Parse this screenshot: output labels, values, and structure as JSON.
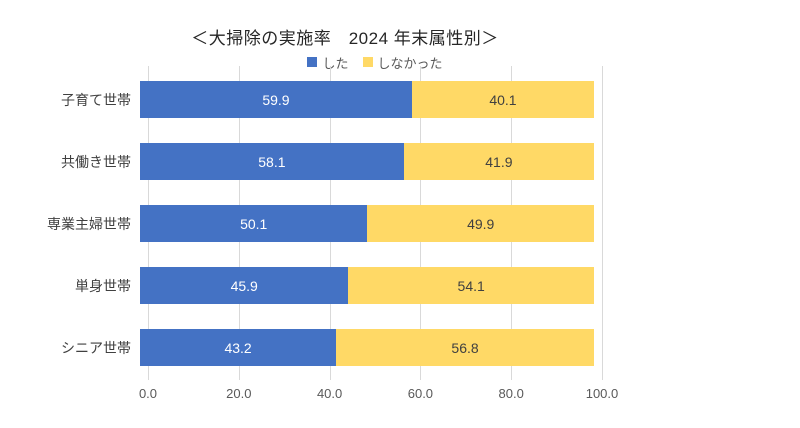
{
  "title": "＜大掃除の実施率　2024 年末属性別＞",
  "legend": [
    {
      "label": "した",
      "color": "#4472C4"
    },
    {
      "label": "しなかった",
      "color": "#FFD966"
    }
  ],
  "chart_data": {
    "type": "bar",
    "stacked": true,
    "orientation": "horizontal",
    "title": "＜大掃除の実施率　2024 年末属性別＞",
    "categories": [
      "子育て世帯",
      "共働き世帯",
      "専業主婦世帯",
      "単身世帯",
      "シニア世帯"
    ],
    "series": [
      {
        "name": "した",
        "color": "#4472C4",
        "label_color": "#FFFFFF",
        "values": [
          59.9,
          58.1,
          50.1,
          45.9,
          43.2
        ]
      },
      {
        "name": "しなかった",
        "color": "#FFD966",
        "label_color": "#404040",
        "values": [
          40.1,
          41.9,
          49.9,
          54.1,
          56.8
        ]
      }
    ],
    "x_tick_labels": [
      "0.0",
      "20.0",
      "40.0",
      "60.0",
      "80.0",
      "100.0"
    ],
    "xlim": [
      0,
      100
    ],
    "grid": true,
    "gridline_color": "#D9D9D9",
    "legend_position": "top",
    "axis_label_color": "#595959"
  }
}
